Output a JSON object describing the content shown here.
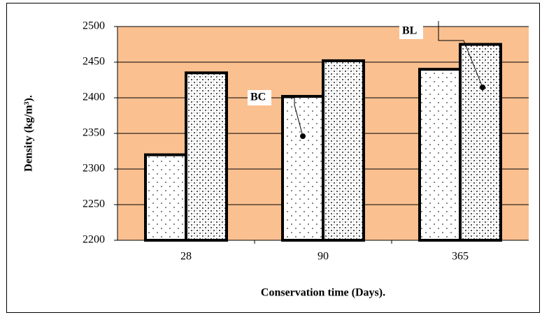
{
  "chart_data": {
    "type": "bar",
    "x_label": "Conservation time (Days).",
    "y_label": "Density (kg/m³).",
    "categories": [
      "28",
      "90",
      "365"
    ],
    "series": [
      {
        "name": "BC",
        "color": "#ffffff",
        "values": [
          2320,
          2402,
          2440
        ]
      },
      {
        "name": "BL",
        "color": "#ffffff",
        "values": [
          2435,
          2452,
          2475
        ]
      }
    ],
    "ylim": [
      2200,
      2500
    ],
    "yticks": [
      2200,
      2250,
      2300,
      2350,
      2400,
      2450,
      2500
    ],
    "grid": true,
    "plot_background": "#fac090"
  }
}
